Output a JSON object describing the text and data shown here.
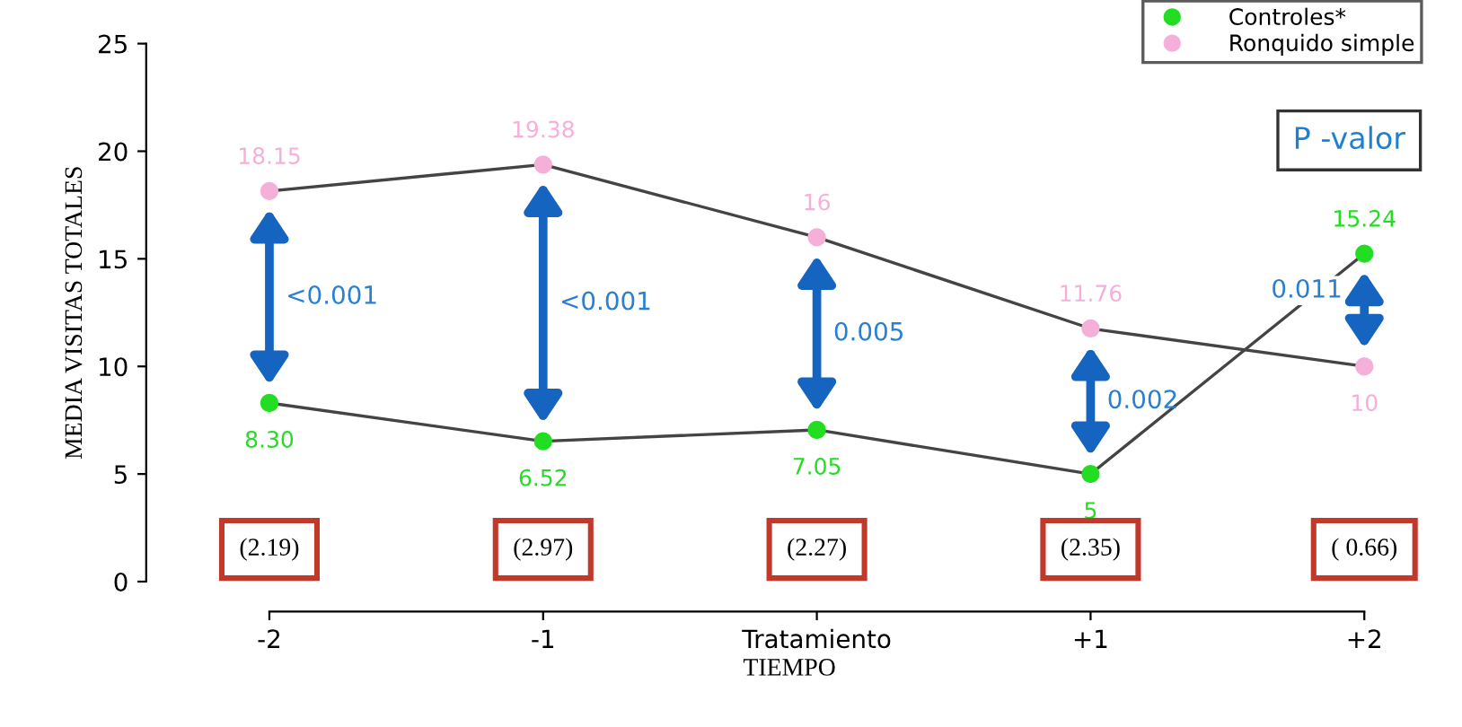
{
  "chart_data": {
    "type": "line",
    "xlabel": "TIEMPO",
    "ylabel": "MEDIA VISITAS TOTALES",
    "categories": [
      "-2",
      "-1",
      "Tratamiento",
      "+1",
      "+2"
    ],
    "series": [
      {
        "name": "Controles*",
        "color": "#22dd22",
        "values": [
          8.3,
          6.52,
          7.05,
          5,
          15.24
        ],
        "value_labels": [
          "8.30",
          "6.52",
          "7.05",
          "5",
          "15.24"
        ]
      },
      {
        "name": "Ronquido simple",
        "color": "#f4b0d8",
        "values": [
          18.15,
          19.38,
          16,
          11.76,
          10
        ],
        "value_labels": [
          "18.15",
          "19.38",
          "16",
          "11.76",
          "10"
        ]
      }
    ],
    "ylim": [
      0,
      25
    ],
    "yticks": [
      0,
      5,
      10,
      15,
      20,
      25
    ],
    "grid": false,
    "legend": "top right",
    "marker": "circle",
    "line_style": "solid",
    "annotations": [
      "P -valor",
      "<0.001",
      "<0.001",
      "0.005",
      "0.002",
      "0.011",
      "(2.19)",
      "(2.97)",
      "(2.27)",
      "(2.35)",
      "( 0.66)"
    ]
  }
}
